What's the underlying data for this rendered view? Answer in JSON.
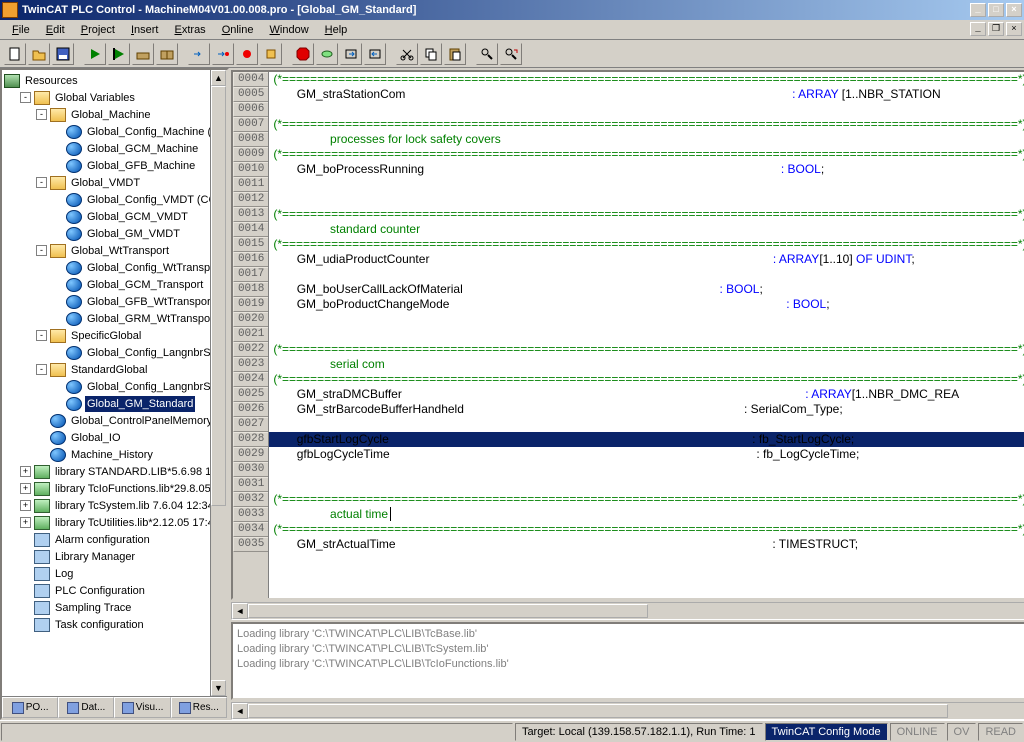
{
  "window": {
    "title": "TwinCAT PLC Control - MachineM04V01.00.008.pro - [Global_GM_Standard]"
  },
  "menu": {
    "items": [
      "File",
      "Edit",
      "Project",
      "Insert",
      "Extras",
      "Online",
      "Window",
      "Help"
    ]
  },
  "tree": {
    "root": "Resources",
    "nodes": [
      {
        "d": 1,
        "e": "-",
        "i": "folder",
        "t": "Global Variables"
      },
      {
        "d": 2,
        "e": "-",
        "i": "folder",
        "t": "Global_Machine"
      },
      {
        "d": 3,
        "e": "",
        "i": "globe",
        "t": "Global_Config_Machine (C"
      },
      {
        "d": 3,
        "e": "",
        "i": "globe",
        "t": "Global_GCM_Machine"
      },
      {
        "d": 3,
        "e": "",
        "i": "globe",
        "t": "Global_GFB_Machine"
      },
      {
        "d": 2,
        "e": "-",
        "i": "folder",
        "t": "Global_VMDT"
      },
      {
        "d": 3,
        "e": "",
        "i": "globe",
        "t": "Global_Config_VMDT (CC"
      },
      {
        "d": 3,
        "e": "",
        "i": "globe",
        "t": "Global_GCM_VMDT"
      },
      {
        "d": 3,
        "e": "",
        "i": "globe",
        "t": "Global_GM_VMDT"
      },
      {
        "d": 2,
        "e": "-",
        "i": "folder",
        "t": "Global_WtTransport"
      },
      {
        "d": 3,
        "e": "",
        "i": "globe",
        "t": "Global_Config_WtTranspo"
      },
      {
        "d": 3,
        "e": "",
        "i": "globe",
        "t": "Global_GCM_Transport"
      },
      {
        "d": 3,
        "e": "",
        "i": "globe",
        "t": "Global_GFB_WtTransport"
      },
      {
        "d": 3,
        "e": "",
        "i": "globe",
        "t": "Global_GRM_WtTranspor"
      },
      {
        "d": 2,
        "e": "-",
        "i": "folder",
        "t": "SpecificGlobal"
      },
      {
        "d": 3,
        "e": "",
        "i": "globe",
        "t": "Global_Config_LangnbrSp"
      },
      {
        "d": 2,
        "e": "-",
        "i": "folder",
        "t": "StandardGlobal"
      },
      {
        "d": 3,
        "e": "",
        "i": "globe",
        "t": "Global_Config_LangnbrSt"
      },
      {
        "d": 3,
        "e": "",
        "i": "globe",
        "t": "Global_GM_Standard",
        "sel": true
      },
      {
        "d": 2,
        "e": "",
        "i": "globe",
        "t": "Global_ControlPanelMemory"
      },
      {
        "d": 2,
        "e": "",
        "i": "globe",
        "t": "Global_IO"
      },
      {
        "d": 2,
        "e": "",
        "i": "globe",
        "t": "Machine_History"
      },
      {
        "d": 1,
        "e": "+",
        "i": "book",
        "t": "library STANDARD.LIB*5.6.98 11:"
      },
      {
        "d": 1,
        "e": "+",
        "i": "book",
        "t": "library TcIoFunctions.lib*29.8.05 1"
      },
      {
        "d": 1,
        "e": "+",
        "i": "book",
        "t": "library TcSystem.lib 7.6.04 12:34:0"
      },
      {
        "d": 1,
        "e": "+",
        "i": "book",
        "t": "library TcUtilities.lib*2.12.05 17:42"
      },
      {
        "d": 1,
        "e": "",
        "i": "misc",
        "t": "Alarm configuration"
      },
      {
        "d": 1,
        "e": "",
        "i": "misc",
        "t": "Library Manager"
      },
      {
        "d": 1,
        "e": "",
        "i": "misc",
        "t": "Log"
      },
      {
        "d": 1,
        "e": "",
        "i": "misc",
        "t": "PLC Configuration"
      },
      {
        "d": 1,
        "e": "",
        "i": "misc",
        "t": "Sampling Trace"
      },
      {
        "d": 1,
        "e": "",
        "i": "misc",
        "t": "Task configuration"
      }
    ]
  },
  "tabs": [
    "PO...",
    "Dat...",
    "Visu...",
    "Res..."
  ],
  "code": {
    "start": 4,
    "lines": [
      {
        "seg": [
          {
            "c": "cm",
            "t": "(*=========================================================================================================*)"
          }
        ]
      },
      {
        "seg": [
          {
            "c": "tx",
            "t": "       GM_straStationCom                                                                                                                    "
          },
          {
            "c": "kw",
            "t": ": ARRAY"
          },
          {
            "c": "tx",
            "t": " [1..NBR_STATION"
          }
        ]
      },
      {
        "seg": [
          {
            "c": "tx",
            "t": ""
          }
        ]
      },
      {
        "seg": [
          {
            "c": "cm",
            "t": "(*=========================================================================================================*)"
          }
        ]
      },
      {
        "seg": [
          {
            "c": "cm",
            "t": "                 processes for lock safety covers"
          }
        ]
      },
      {
        "seg": [
          {
            "c": "cm",
            "t": "(*=========================================================================================================*)"
          }
        ]
      },
      {
        "seg": [
          {
            "c": "tx",
            "t": "       GM_boProcessRunning                                                                                                           "
          },
          {
            "c": "kw",
            "t": ": BOOL"
          },
          {
            "c": "tx",
            "t": ";"
          }
        ]
      },
      {
        "seg": [
          {
            "c": "tx",
            "t": ""
          }
        ]
      },
      {
        "seg": [
          {
            "c": "tx",
            "t": ""
          }
        ]
      },
      {
        "seg": [
          {
            "c": "cm",
            "t": "(*=========================================================================================================*)"
          }
        ]
      },
      {
        "seg": [
          {
            "c": "cm",
            "t": "                 standard counter"
          }
        ]
      },
      {
        "seg": [
          {
            "c": "cm",
            "t": "(*=========================================================================================================*)"
          }
        ]
      },
      {
        "seg": [
          {
            "c": "tx",
            "t": "       GM_udiaProductCounter                                                                                                       "
          },
          {
            "c": "kw",
            "t": ": ARRAY"
          },
          {
            "c": "tx",
            "t": "[1..10] "
          },
          {
            "c": "kw",
            "t": "OF UDINT"
          },
          {
            "c": "tx",
            "t": ";"
          }
        ]
      },
      {
        "seg": [
          {
            "c": "tx",
            "t": ""
          }
        ]
      },
      {
        "seg": [
          {
            "c": "tx",
            "t": "       GM_boUserCallLackOfMaterial                                                                             "
          },
          {
            "c": "kw",
            "t": ": BOOL"
          },
          {
            "c": "tx",
            "t": ";"
          }
        ]
      },
      {
        "seg": [
          {
            "c": "tx",
            "t": "       GM_boProductChangeMode                                                                                                     "
          },
          {
            "c": "kw",
            "t": ": BOOL"
          },
          {
            "c": "tx",
            "t": ";"
          }
        ]
      },
      {
        "seg": [
          {
            "c": "tx",
            "t": ""
          }
        ]
      },
      {
        "seg": [
          {
            "c": "tx",
            "t": ""
          }
        ]
      },
      {
        "seg": [
          {
            "c": "cm",
            "t": "(*=========================================================================================================*)"
          }
        ]
      },
      {
        "seg": [
          {
            "c": "cm",
            "t": "                 serial com"
          }
        ]
      },
      {
        "seg": [
          {
            "c": "cm",
            "t": "(*=========================================================================================================*)"
          }
        ]
      },
      {
        "seg": [
          {
            "c": "tx",
            "t": "       GM_straDMCBuffer                                                                                                                         "
          },
          {
            "c": "kw",
            "t": ": ARRAY"
          },
          {
            "c": "tx",
            "t": "[1..NBR_DMC_REA"
          }
        ]
      },
      {
        "seg": [
          {
            "c": "tx",
            "t": "       GM_strBarcodeBufferHandheld                                                                                    : SerialCom_Type;"
          }
        ]
      },
      {
        "seg": [
          {
            "c": "tx",
            "t": ""
          }
        ]
      },
      {
        "sel": true,
        "seg": [
          {
            "c": "tx",
            "t": "       gfbStartLogCycle                                                                                                             : fb_StartLogCycle;"
          }
        ]
      },
      {
        "seg": [
          {
            "c": "tx",
            "t": "       gfbLogCycleTime                                                                                                              : fb_LogCycleTime;"
          }
        ]
      },
      {
        "seg": [
          {
            "c": "tx",
            "t": ""
          }
        ]
      },
      {
        "seg": [
          {
            "c": "tx",
            "t": ""
          }
        ]
      },
      {
        "seg": [
          {
            "c": "cm",
            "t": "(*=========================================================================================================*)"
          }
        ]
      },
      {
        "seg": [
          {
            "c": "cm",
            "t": "                 actual time"
          }
        ],
        "cursor": true
      },
      {
        "seg": [
          {
            "c": "cm",
            "t": "(*=========================================================================================================*)"
          }
        ]
      },
      {
        "seg": [
          {
            "c": "tx",
            "t": "       GM_strActualTime                                                                                                                 : TIMESTRUCT;"
          }
        ]
      }
    ]
  },
  "output": [
    "Loading library 'C:\\TWINCAT\\PLC\\LIB\\TcBase.lib'",
    "Loading library 'C:\\TWINCAT\\PLC\\LIB\\TcSystem.lib'",
    "Loading library 'C:\\TWINCAT\\PLC\\LIB\\TcIoFunctions.lib'"
  ],
  "status": {
    "target": "Target: Local (139.158.57.182.1.1), Run Time: 1",
    "mode": "TwinCAT Config Mode",
    "cells": [
      "ONLINE",
      "OV",
      "READ"
    ]
  }
}
